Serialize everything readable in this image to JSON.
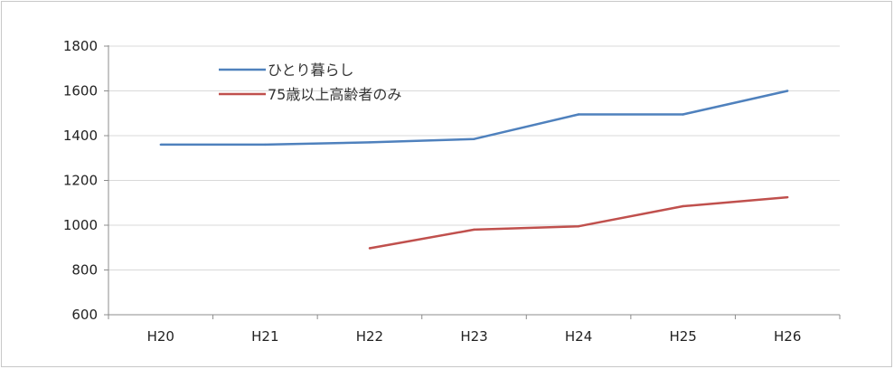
{
  "chart_data": {
    "type": "line",
    "title": "",
    "xlabel": "",
    "ylabel": "",
    "categories": [
      "H20",
      "H21",
      "H22",
      "H23",
      "H24",
      "H25",
      "H26"
    ],
    "ylim": [
      600,
      1800
    ],
    "yticks": [
      600,
      800,
      1000,
      1200,
      1400,
      1600,
      1800
    ],
    "grid": true,
    "legend_position": "top-left",
    "series": [
      {
        "name": "ひとり暮らし",
        "color": "#4f81bd",
        "values": [
          1360,
          1360,
          1370,
          1385,
          1495,
          1495,
          1600
        ]
      },
      {
        "name": "75歳以上高齢者のみ",
        "color": "#c0504d",
        "values": [
          null,
          null,
          897,
          980,
          995,
          1085,
          1125
        ]
      }
    ]
  }
}
